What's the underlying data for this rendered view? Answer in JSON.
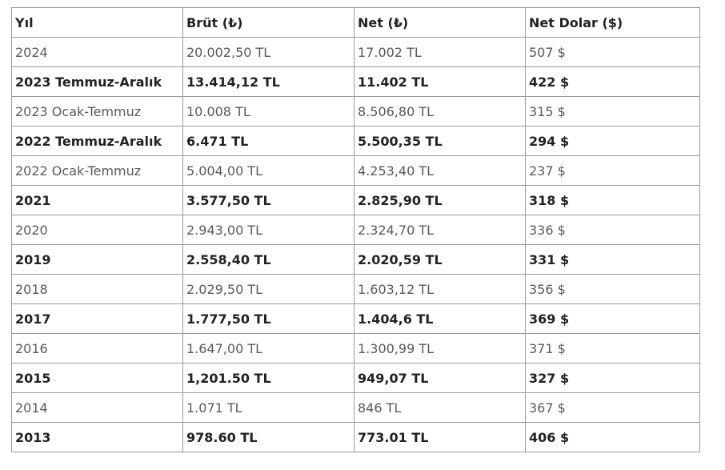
{
  "table": {
    "headers": [
      "Yıl",
      "Brüt (₺)",
      "Net (₺)",
      "Net Dolar ($)"
    ],
    "rows": [
      {
        "bold": false,
        "cells": [
          "2024",
          "20.002,50 TL",
          "17.002 TL",
          "507 $"
        ]
      },
      {
        "bold": true,
        "cells": [
          "2023 Temmuz-Aralık",
          "13.414,12 TL",
          "11.402 TL",
          "422 $"
        ]
      },
      {
        "bold": false,
        "cells": [
          "2023 Ocak-Temmuz",
          "10.008 TL",
          "8.506,80 TL",
          "315 $"
        ]
      },
      {
        "bold": true,
        "cells": [
          "2022 Temmuz-Aralık",
          "6.471 TL",
          "5.500,35 TL",
          "294 $"
        ]
      },
      {
        "bold": false,
        "cells": [
          "2022 Ocak-Temmuz",
          "5.004,00 TL",
          "4.253,40 TL",
          "237 $"
        ]
      },
      {
        "bold": true,
        "cells": [
          "2021",
          "3.577,50 TL",
          "2.825,90 TL",
          "318 $"
        ]
      },
      {
        "bold": false,
        "cells": [
          "2020",
          "2.943,00 TL",
          "2.324,70 TL",
          "336 $"
        ]
      },
      {
        "bold": true,
        "cells": [
          "2019",
          "2.558,40 TL",
          "2.020,59 TL",
          "331 $"
        ]
      },
      {
        "bold": false,
        "cells": [
          "2018",
          "2.029,50 TL",
          "1.603,12 TL",
          "356 $"
        ]
      },
      {
        "bold": true,
        "cells": [
          "2017",
          "1.777,50 TL",
          "1.404,6 TL",
          "369 $"
        ]
      },
      {
        "bold": false,
        "cells": [
          "2016",
          "1.647,00 TL",
          "1.300,99 TL",
          "371 $"
        ]
      },
      {
        "bold": true,
        "cells": [
          "2015",
          "1,201.50 TL",
          "949,07 TL",
          "327 $"
        ]
      },
      {
        "bold": false,
        "cells": [
          "2014",
          "1.071 TL",
          "846 TL",
          "367 $"
        ]
      },
      {
        "bold": true,
        "cells": [
          "2013",
          "978.60 TL",
          "773.01 TL",
          "406 $"
        ]
      }
    ]
  }
}
